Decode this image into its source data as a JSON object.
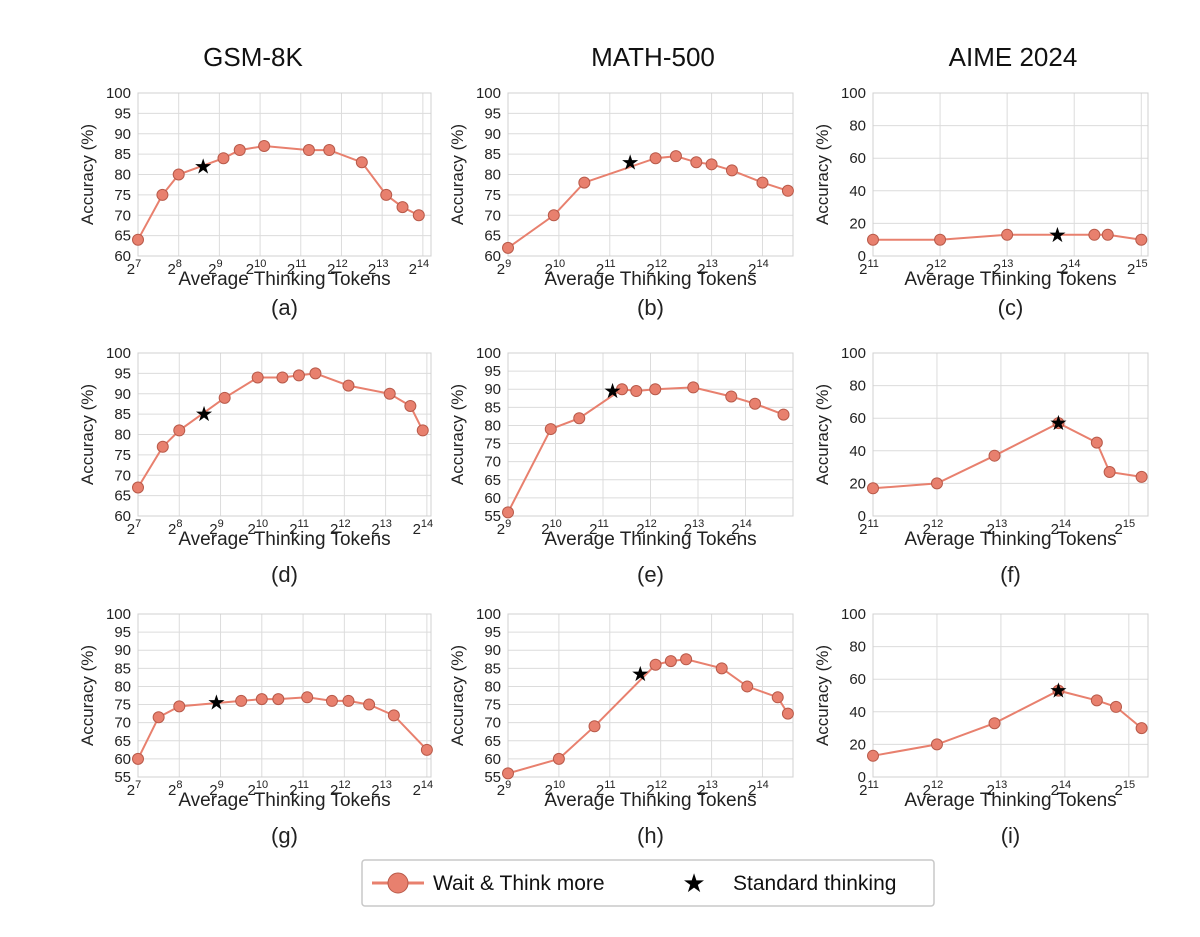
{
  "colors": {
    "series": "#E8806E",
    "marker_edge": "#B85A4A",
    "star": "#000000"
  },
  "columns": [
    "GSM-8K",
    "MATH-500",
    "AIME 2024"
  ],
  "axis_text": {
    "ylabel": "Accuracy (%)",
    "xlabel": "Average Thinking Tokens"
  },
  "legend": {
    "series_label": "Wait & Think more",
    "star_label": "Standard thinking",
    "placement": "bottom-center"
  },
  "chart_data": [
    {
      "label": "(a)",
      "type": "line",
      "xscale": "log2",
      "xlim": [
        7,
        14.2
      ],
      "ylim": [
        60,
        100
      ],
      "yticks": [
        60,
        65,
        70,
        75,
        80,
        85,
        90,
        95,
        100
      ],
      "xtick_exps": [
        7,
        8,
        9,
        10,
        11,
        12,
        13,
        14
      ],
      "series": [
        {
          "x_log2": [
            7,
            7.6,
            8,
            9.1,
            9.5,
            10.1,
            11.2,
            11.7,
            12.5,
            13.1,
            13.5,
            13.9
          ],
          "values": [
            64,
            75,
            80,
            84,
            86,
            87,
            86,
            86,
            83,
            75,
            72,
            70
          ]
        }
      ],
      "star": {
        "x_log2": 8.6,
        "value": 82
      }
    },
    {
      "label": "(b)",
      "type": "line",
      "xscale": "log2",
      "xlim": [
        9,
        14.6
      ],
      "ylim": [
        60,
        100
      ],
      "yticks": [
        60,
        65,
        70,
        75,
        80,
        85,
        90,
        95,
        100
      ],
      "xtick_exps": [
        9,
        10,
        11,
        12,
        13,
        14
      ],
      "series": [
        {
          "x_log2": [
            9,
            9.9,
            10.5,
            11.9,
            12.3,
            12.7,
            13,
            13.4,
            14,
            14.5
          ],
          "values": [
            62,
            70,
            78,
            84,
            84.5,
            83,
            82.5,
            81,
            78,
            76
          ]
        }
      ],
      "star": {
        "x_log2": 11.4,
        "value": 83
      }
    },
    {
      "label": "(c)",
      "type": "line",
      "xscale": "log2",
      "xlim": [
        11,
        15.1
      ],
      "ylim": [
        0,
        100
      ],
      "yticks": [
        0,
        20,
        40,
        60,
        80,
        100
      ],
      "xtick_exps": [
        11,
        12,
        13,
        14,
        15
      ],
      "series": [
        {
          "x_log2": [
            11,
            12,
            13,
            14.3,
            14.5,
            15
          ],
          "values": [
            10,
            10,
            13,
            13,
            13,
            10
          ]
        }
      ],
      "star": {
        "x_log2": 13.75,
        "value": 13
      }
    },
    {
      "label": "(d)",
      "type": "line",
      "xscale": "log2",
      "xlim": [
        7,
        14.1
      ],
      "ylim": [
        60,
        100
      ],
      "yticks": [
        60,
        65,
        70,
        75,
        80,
        85,
        90,
        95,
        100
      ],
      "xtick_exps": [
        7,
        8,
        9,
        10,
        11,
        12,
        13,
        14
      ],
      "series": [
        {
          "x_log2": [
            7,
            7.6,
            8,
            9.1,
            9.9,
            10.5,
            10.9,
            11.3,
            12.1,
            13.1,
            13.6,
            13.9
          ],
          "values": [
            67,
            77,
            81,
            89,
            94,
            94,
            94.5,
            95,
            92,
            90,
            87,
            81
          ]
        }
      ],
      "star": {
        "x_log2": 8.6,
        "value": 85
      }
    },
    {
      "label": "(e)",
      "type": "line",
      "xscale": "log2",
      "xlim": [
        9,
        15
      ],
      "ylim": [
        55,
        100
      ],
      "yticks": [
        55,
        60,
        65,
        70,
        75,
        80,
        85,
        90,
        95,
        100
      ],
      "xtick_exps": [
        9,
        10,
        11,
        12,
        13,
        14
      ],
      "series": [
        {
          "x_log2": [
            9,
            9.9,
            10.5,
            11.4,
            11.7,
            12.1,
            12.9,
            13.7,
            14.2,
            14.8
          ],
          "values": [
            56,
            79,
            82,
            90,
            89.5,
            90,
            90.5,
            88,
            86,
            83
          ]
        }
      ],
      "star": {
        "x_log2": 11.2,
        "value": 89.5
      }
    },
    {
      "label": "(f)",
      "type": "line",
      "xscale": "log2",
      "xlim": [
        11,
        15.3
      ],
      "ylim": [
        0,
        100
      ],
      "yticks": [
        0,
        20,
        40,
        60,
        80,
        100
      ],
      "xtick_exps": [
        11,
        12,
        13,
        14,
        15
      ],
      "series": [
        {
          "x_log2": [
            11,
            12,
            12.9,
            13.9,
            14.5,
            14.7,
            15.2
          ],
          "values": [
            17,
            20,
            37,
            57,
            45,
            27,
            24
          ]
        }
      ],
      "star": {
        "x_log2": 13.9,
        "value": 57
      }
    },
    {
      "label": "(g)",
      "type": "line",
      "xscale": "log2",
      "xlim": [
        7,
        14.1
      ],
      "ylim": [
        55,
        100
      ],
      "yticks": [
        55,
        60,
        65,
        70,
        75,
        80,
        85,
        90,
        95,
        100
      ],
      "xtick_exps": [
        7,
        8,
        9,
        10,
        11,
        12,
        13,
        14
      ],
      "series": [
        {
          "x_log2": [
            7,
            7.5,
            8,
            9.5,
            10,
            10.4,
            11.1,
            11.7,
            12.1,
            12.6,
            13.2,
            14
          ],
          "values": [
            60,
            71.5,
            74.5,
            76,
            76.5,
            76.5,
            77,
            76,
            76,
            75,
            72,
            62.5
          ]
        }
      ],
      "star": {
        "x_log2": 8.9,
        "value": 75.5
      }
    },
    {
      "label": "(h)",
      "type": "line",
      "xscale": "log2",
      "xlim": [
        9,
        14.6
      ],
      "ylim": [
        55,
        100
      ],
      "yticks": [
        55,
        60,
        65,
        70,
        75,
        80,
        85,
        90,
        95,
        100
      ],
      "xtick_exps": [
        9,
        10,
        11,
        12,
        13,
        14
      ],
      "series": [
        {
          "x_log2": [
            9,
            10,
            10.7,
            11.9,
            12.2,
            12.5,
            13.2,
            13.7,
            14.3,
            14.5
          ],
          "values": [
            56,
            60,
            69,
            86,
            87,
            87.5,
            85,
            80,
            77,
            72.5
          ]
        }
      ],
      "star": {
        "x_log2": 11.6,
        "value": 83.5
      }
    },
    {
      "label": "(i)",
      "type": "line",
      "xscale": "log2",
      "xlim": [
        11,
        15.3
      ],
      "ylim": [
        0,
        100
      ],
      "yticks": [
        0,
        20,
        40,
        60,
        80,
        100
      ],
      "xtick_exps": [
        11,
        12,
        13,
        14,
        15
      ],
      "series": [
        {
          "x_log2": [
            11,
            12,
            12.9,
            13.9,
            14.5,
            14.8,
            15.2
          ],
          "values": [
            13,
            20,
            33,
            53,
            47,
            43,
            30
          ]
        }
      ],
      "star": {
        "x_log2": 13.9,
        "value": 53
      }
    }
  ]
}
